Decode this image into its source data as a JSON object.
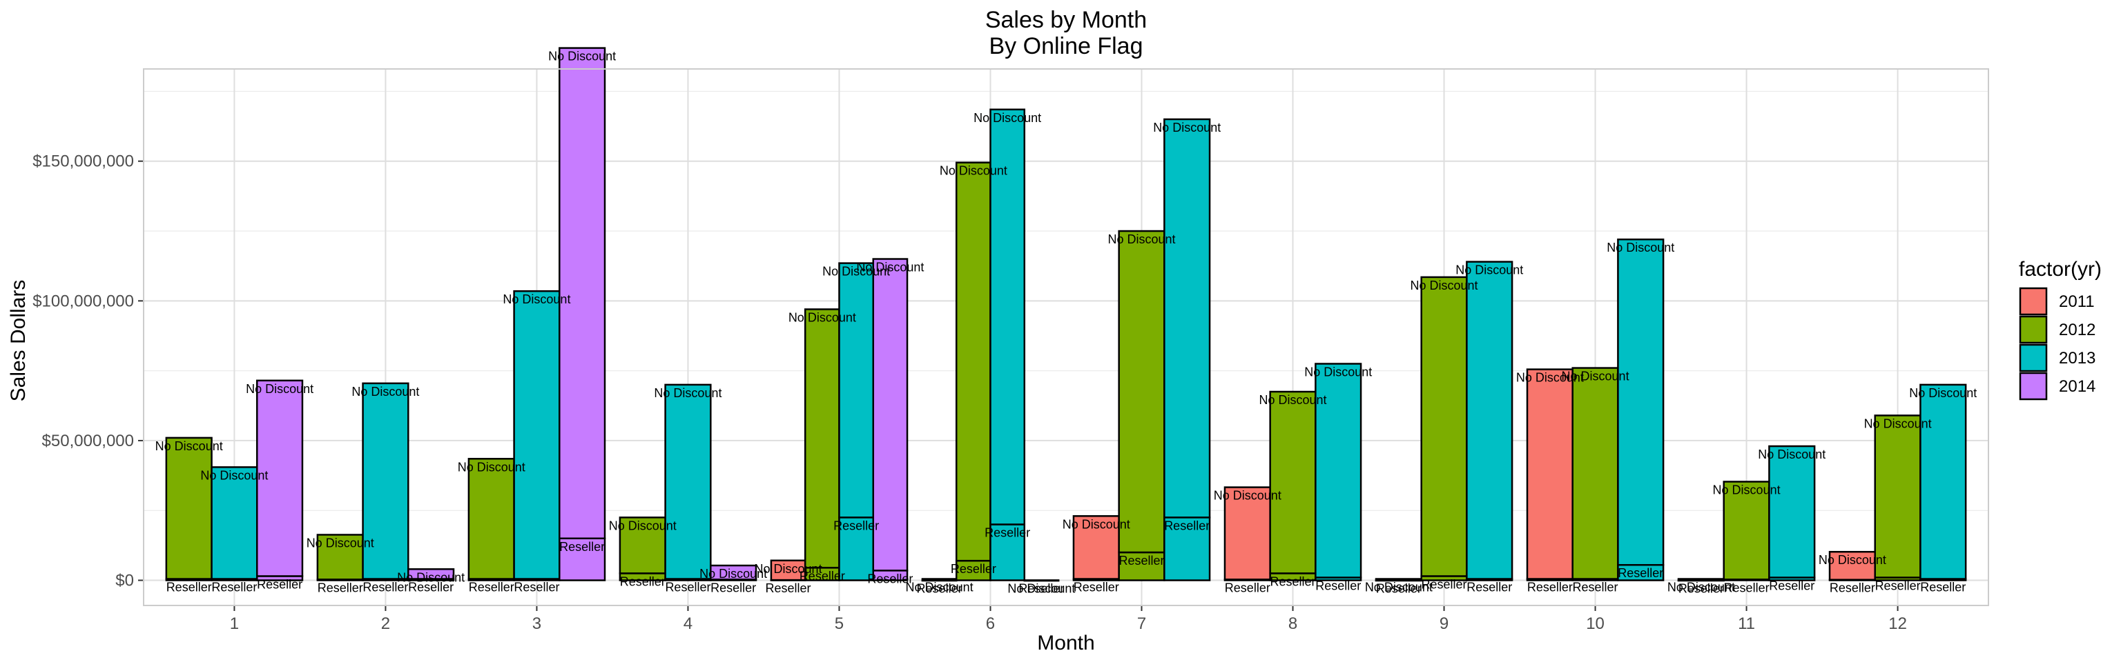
{
  "chart_data": {
    "type": "bar",
    "title": "Sales by Month",
    "subtitle": "By Online Flag",
    "xlabel": "Month",
    "ylabel": "Sales Dollars",
    "legend_title": "factor(yr)",
    "legend_position": "right",
    "grid": true,
    "ylim": [
      -9000000,
      183000000
    ],
    "y_ticks": [
      0,
      50000000,
      100000000,
      150000000
    ],
    "y_tick_labels": [
      "$0",
      "$50,000,000",
      "$100,000,000",
      "$150,000,000"
    ],
    "categories": [
      "1",
      "2",
      "3",
      "4",
      "5",
      "6",
      "7",
      "8",
      "9",
      "10",
      "11",
      "12"
    ],
    "series": [
      {
        "name": "2011",
        "color": "#F8766D"
      },
      {
        "name": "2012",
        "color": "#7CAE00"
      },
      {
        "name": "2013",
        "color": "#00BFC4"
      },
      {
        "name": "2014",
        "color": "#C77CFF"
      }
    ],
    "bars": [
      {
        "month": 1,
        "year": "2012",
        "reseller": 500000,
        "no_discount": 50500000
      },
      {
        "month": 1,
        "year": "2013",
        "reseller": 500000,
        "no_discount": 40000000
      },
      {
        "month": 1,
        "year": "2014",
        "reseller": 1500000,
        "no_discount": 70000000
      },
      {
        "month": 2,
        "year": "2012",
        "reseller": 300000,
        "no_discount": 16000000
      },
      {
        "month": 2,
        "year": "2013",
        "reseller": 500000,
        "no_discount": 70000000
      },
      {
        "month": 2,
        "year": "2014",
        "reseller": 500000,
        "no_discount": 3500000
      },
      {
        "month": 3,
        "year": "2012",
        "reseller": 500000,
        "no_discount": 43000000
      },
      {
        "month": 3,
        "year": "2013",
        "reseller": 500000,
        "no_discount": 103000000
      },
      {
        "month": 3,
        "year": "2014",
        "reseller": 15000000,
        "no_discount": 175500000
      },
      {
        "month": 4,
        "year": "2012",
        "reseller": 2500000,
        "no_discount": 20000000
      },
      {
        "month": 4,
        "year": "2013",
        "reseller": 500000,
        "no_discount": 69500000
      },
      {
        "month": 4,
        "year": "2014",
        "reseller": 300000,
        "no_discount": 5000000
      },
      {
        "month": 5,
        "year": "2011",
        "reseller": 100000,
        "no_discount": 7000000
      },
      {
        "month": 5,
        "year": "2012",
        "reseller": 4500000,
        "no_discount": 92500000
      },
      {
        "month": 5,
        "year": "2013",
        "reseller": 22500000,
        "no_discount": 91000000
      },
      {
        "month": 5,
        "year": "2014",
        "reseller": 3500000,
        "no_discount": 111500000
      },
      {
        "month": 6,
        "year": "2011",
        "reseller": 0,
        "no_discount": 500000
      },
      {
        "month": 6,
        "year": "2012",
        "reseller": 7000000,
        "no_discount": 142500000
      },
      {
        "month": 6,
        "year": "2013",
        "reseller": 20000000,
        "no_discount": 148500000
      },
      {
        "month": 6,
        "year": "2014",
        "reseller": 0,
        "no_discount": 0
      },
      {
        "month": 7,
        "year": "2011",
        "reseller": 500000,
        "no_discount": 22500000
      },
      {
        "month": 7,
        "year": "2012",
        "reseller": 10000000,
        "no_discount": 115000000
      },
      {
        "month": 7,
        "year": "2013",
        "reseller": 22500000,
        "no_discount": 142500000
      },
      {
        "month": 8,
        "year": "2011",
        "reseller": 300000,
        "no_discount": 33000000
      },
      {
        "month": 8,
        "year": "2012",
        "reseller": 2500000,
        "no_discount": 65000000
      },
      {
        "month": 8,
        "year": "2013",
        "reseller": 1000000,
        "no_discount": 76500000
      },
      {
        "month": 9,
        "year": "2011",
        "reseller": 0,
        "no_discount": 500000
      },
      {
        "month": 9,
        "year": "2012",
        "reseller": 1500000,
        "no_discount": 107000000
      },
      {
        "month": 9,
        "year": "2013",
        "reseller": 500000,
        "no_discount": 113500000
      },
      {
        "month": 10,
        "year": "2011",
        "reseller": 500000,
        "no_discount": 75000000
      },
      {
        "month": 10,
        "year": "2012",
        "reseller": 500000,
        "no_discount": 75500000
      },
      {
        "month": 10,
        "year": "2013",
        "reseller": 5500000,
        "no_discount": 116500000
      },
      {
        "month": 11,
        "year": "2011",
        "reseller": 0,
        "no_discount": 500000
      },
      {
        "month": 11,
        "year": "2012",
        "reseller": 300000,
        "no_discount": 35000000
      },
      {
        "month": 11,
        "year": "2013",
        "reseller": 1000000,
        "no_discount": 47000000
      },
      {
        "month": 12,
        "year": "2011",
        "reseller": 200000,
        "no_discount": 10000000
      },
      {
        "month": 12,
        "year": "2012",
        "reseller": 1000000,
        "no_discount": 58000000
      },
      {
        "month": 12,
        "year": "2013",
        "reseller": 500000,
        "no_discount": 69500000
      }
    ],
    "segment_labels": {
      "reseller": "Reseller",
      "no_discount": "No Discount"
    }
  }
}
